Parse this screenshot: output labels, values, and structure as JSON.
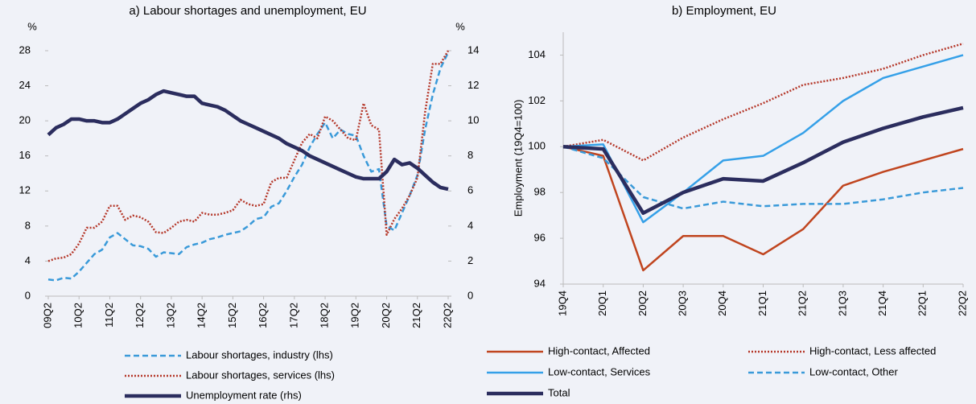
{
  "chart_data": [
    {
      "type": "line",
      "title": "a) Labour shortages and unemployment, EU",
      "y_label": "%",
      "y2_label": "%",
      "categories": [
        "09Q2",
        null,
        null,
        null,
        "10Q2",
        null,
        null,
        null,
        "11Q2",
        null,
        null,
        null,
        "12Q2",
        null,
        null,
        null,
        "13Q2",
        null,
        null,
        null,
        "14Q2",
        null,
        null,
        null,
        "15Q2",
        null,
        null,
        null,
        "16Q2",
        null,
        null,
        null,
        "17Q2",
        null,
        null,
        null,
        "18Q2",
        null,
        null,
        null,
        "19Q2",
        null,
        null,
        null,
        "20Q2",
        null,
        null,
        null,
        "21Q2",
        null,
        null,
        null,
        "22Q2"
      ],
      "ylim": [
        0,
        28
      ],
      "yticks": [
        0,
        4,
        8,
        12,
        16,
        20,
        24,
        28
      ],
      "y2lim": [
        0,
        14
      ],
      "y2ticks": [
        0,
        2,
        4,
        6,
        8,
        10,
        12,
        14
      ],
      "legend": "bottom",
      "series": [
        {
          "name": "Labour shortages, industry (lhs)",
          "color": "#3a9ad9",
          "style": "dashed",
          "values": [
            1.9,
            1.8,
            2.1,
            2.0,
            2.8,
            3.8,
            4.8,
            5.3,
            6.7,
            7.2,
            6.5,
            5.8,
            5.7,
            5.4,
            4.5,
            5.0,
            4.9,
            4.8,
            5.6,
            5.9,
            6.1,
            6.5,
            6.7,
            7.0,
            7.2,
            7.4,
            8.0,
            8.8,
            9.0,
            10.2,
            10.6,
            12.0,
            13.6,
            15.0,
            17.0,
            18.5,
            19.8,
            18.0,
            19.0,
            18.5,
            18.3,
            16.0,
            14.2,
            14.5,
            8.0,
            7.5,
            9.5,
            11.5,
            13.8,
            19.0,
            23.0,
            26.0,
            27.8
          ]
        },
        {
          "name": "Labour shortages, services (lhs)",
          "color": "#b5382a",
          "style": "dotted",
          "values": [
            4.0,
            4.3,
            4.4,
            4.8,
            6.0,
            7.8,
            7.8,
            8.5,
            10.3,
            10.3,
            8.7,
            9.2,
            9.0,
            8.5,
            7.3,
            7.2,
            7.8,
            8.5,
            8.7,
            8.5,
            9.5,
            9.3,
            9.3,
            9.5,
            9.8,
            11.0,
            10.5,
            10.3,
            10.5,
            13.0,
            13.5,
            13.5,
            15.5,
            17.5,
            18.5,
            18.0,
            20.5,
            20.0,
            19.0,
            18.0,
            17.8,
            22.0,
            19.5,
            19.0,
            7.0,
            8.8,
            10.0,
            11.5,
            13.5,
            21.0,
            26.5,
            26.5,
            28.0
          ]
        },
        {
          "name": "Unemployment rate (rhs)",
          "color": "#2b2d5e",
          "style": "bold",
          "axis": "y2",
          "values": [
            9.2,
            9.6,
            9.8,
            10.1,
            10.1,
            10.0,
            10.0,
            9.9,
            9.9,
            10.1,
            10.4,
            10.7,
            11.0,
            11.2,
            11.5,
            11.7,
            11.6,
            11.5,
            11.4,
            11.4,
            11.0,
            10.9,
            10.8,
            10.6,
            10.3,
            10.0,
            9.8,
            9.6,
            9.4,
            9.2,
            9.0,
            8.7,
            8.5,
            8.3,
            8.0,
            7.8,
            7.6,
            7.4,
            7.2,
            7.0,
            6.8,
            6.7,
            6.7,
            6.7,
            7.1,
            7.8,
            7.5,
            7.6,
            7.3,
            6.9,
            6.5,
            6.2,
            6.1
          ]
        }
      ]
    },
    {
      "type": "line",
      "title": "b) Employment, EU",
      "y_label": "Employment (19Q4=100)",
      "categories": [
        "19Q4",
        "20Q1",
        "20Q2",
        "20Q3",
        "20Q4",
        "21Q1",
        "21Q2",
        "21Q3",
        "21Q4",
        "22Q1",
        "22Q2"
      ],
      "ylim": [
        94,
        105
      ],
      "yticks": [
        94,
        96,
        98,
        100,
        102,
        104
      ],
      "legend": "bottom",
      "series": [
        {
          "name": "High-contact, Affected",
          "color": "#c0451f",
          "style": "solid",
          "values": [
            100,
            99.6,
            94.6,
            96.1,
            96.1,
            95.3,
            96.4,
            98.3,
            98.9,
            99.4,
            99.9
          ]
        },
        {
          "name": "High-contact, Less affected",
          "color": "#b5382a",
          "style": "dotted",
          "values": [
            100,
            100.3,
            99.4,
            100.4,
            101.2,
            101.9,
            102.7,
            103.0,
            103.4,
            104.0,
            104.5
          ]
        },
        {
          "name": "Low-contact, Services",
          "color": "#35a0e8",
          "style": "solid",
          "values": [
            100,
            100.1,
            96.7,
            98.0,
            99.4,
            99.6,
            100.6,
            102.0,
            103.0,
            103.5,
            104.0
          ]
        },
        {
          "name": "Low-contact, Other",
          "color": "#3a9ad9",
          "style": "dashed",
          "values": [
            100,
            99.5,
            97.8,
            97.3,
            97.6,
            97.4,
            97.5,
            97.5,
            97.7,
            98.0,
            98.2
          ]
        },
        {
          "name": "Total",
          "color": "#2b2d5e",
          "style": "bold",
          "values": [
            100,
            99.9,
            97.1,
            98.0,
            98.6,
            98.5,
            99.3,
            100.2,
            100.8,
            101.3,
            101.7
          ]
        }
      ]
    }
  ]
}
